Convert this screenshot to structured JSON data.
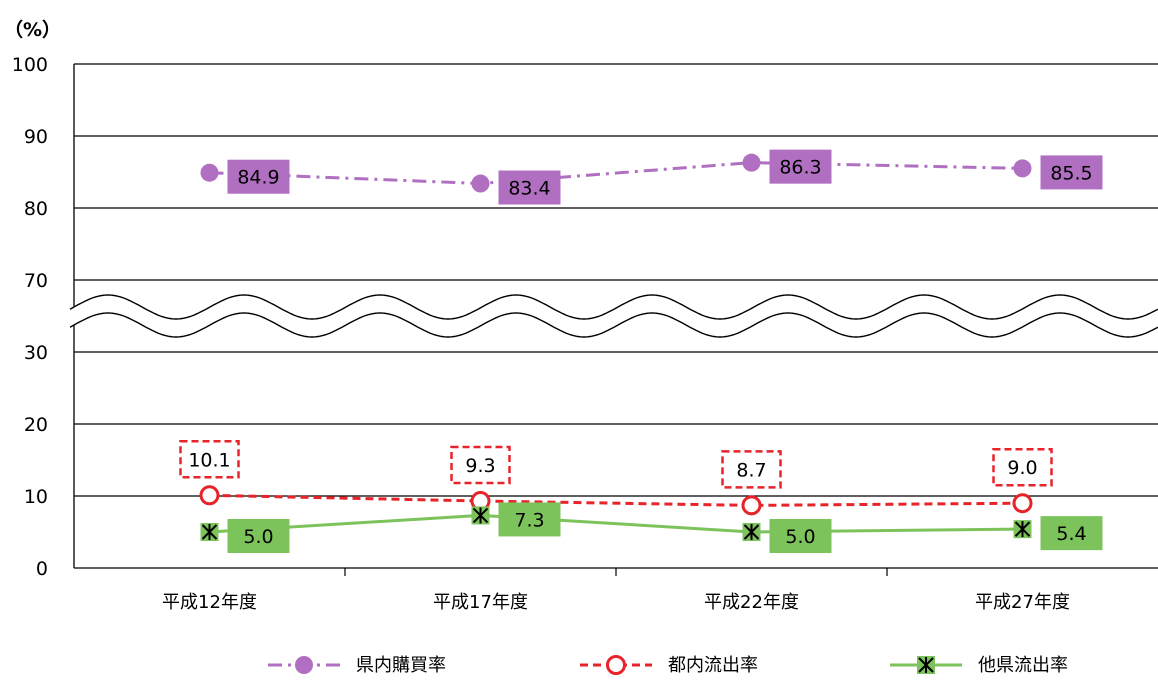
{
  "chart_data": {
    "type": "line",
    "unit_label": "（%）",
    "categories": [
      "平成12年度",
      "平成17年度",
      "平成22年度",
      "平成27年度"
    ],
    "y_ticks": [
      "100",
      "90",
      "80",
      "70",
      "30",
      "20",
      "10",
      "0"
    ],
    "ylim": [
      0,
      100
    ],
    "axis_break": [
      35,
      65
    ],
    "grid": true,
    "legend_position": "bottom",
    "series": [
      {
        "name": "県内購買率",
        "values": [
          84.9,
          83.4,
          86.3,
          85.5
        ],
        "labels": [
          "84.9",
          "83.4",
          "86.3",
          "85.5"
        ],
        "color": "#b06fc0",
        "label_fill": "#b06fc0",
        "marker": "filled-circle",
        "line_style": "dash-dot"
      },
      {
        "name": "都内流出率",
        "values": [
          10.1,
          9.3,
          8.7,
          9.0
        ],
        "labels": [
          "10.1",
          "9.3",
          "8.7",
          "9.0"
        ],
        "color": "#e8232a",
        "label_fill": "#ffffff",
        "marker": "open-circle",
        "line_style": "dashed"
      },
      {
        "name": "他県流出率",
        "values": [
          5.0,
          7.3,
          5.0,
          5.4
        ],
        "labels": [
          "5.0",
          "7.3",
          "5.0",
          "5.4"
        ],
        "color": "#7dc35b",
        "label_fill": "#7dc35b",
        "marker": "asterisk-square",
        "line_style": "solid"
      }
    ]
  }
}
